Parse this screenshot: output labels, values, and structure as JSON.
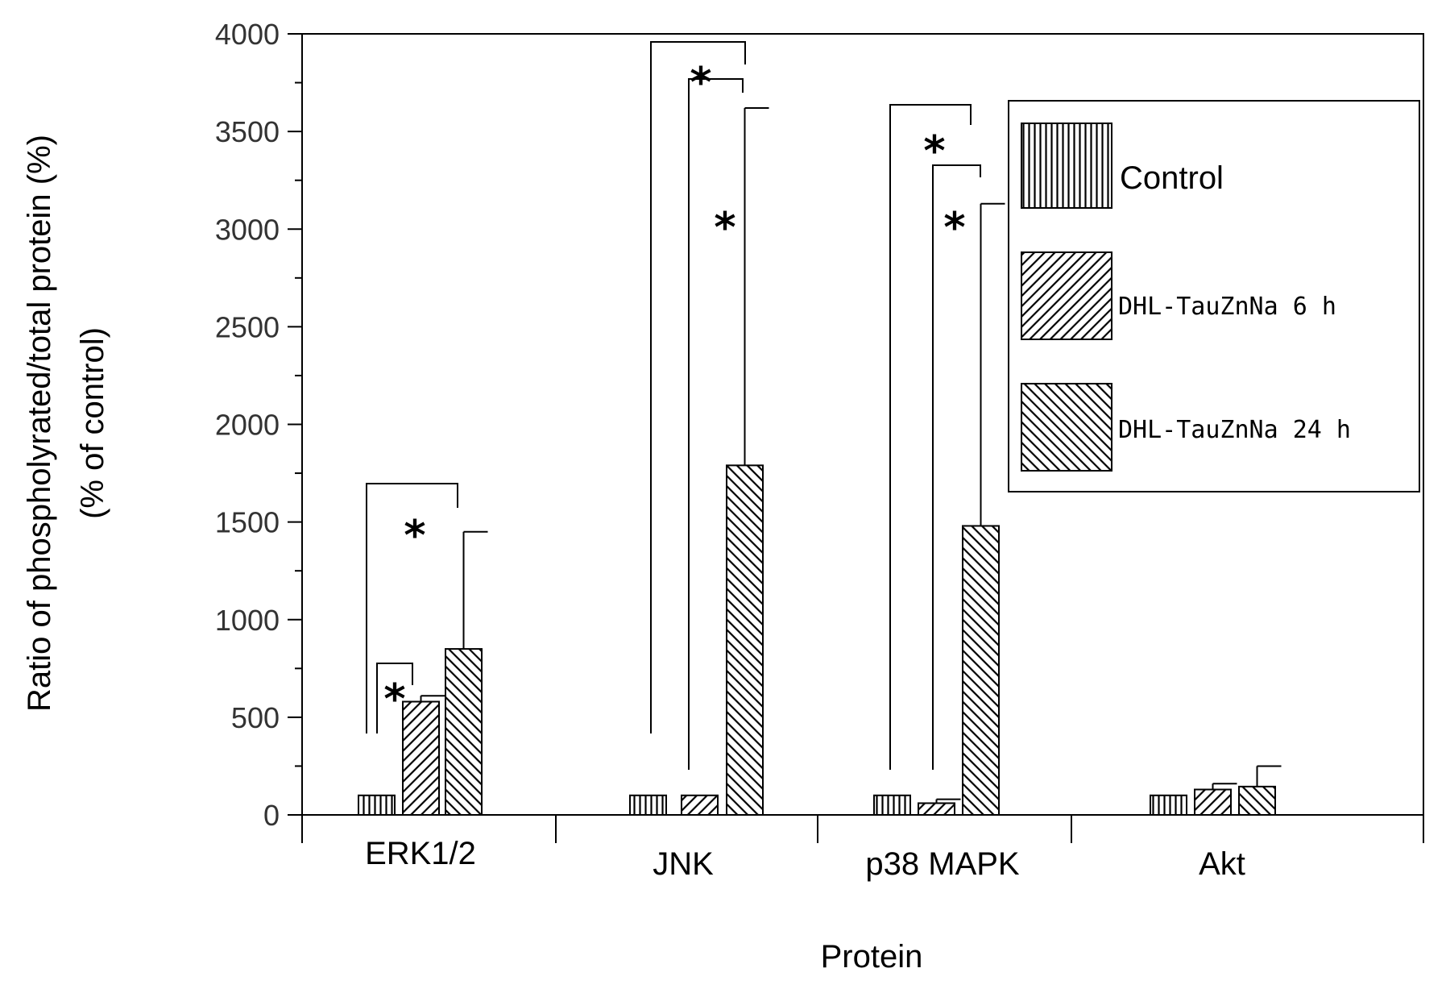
{
  "chart_data": {
    "type": "bar",
    "xlabel": "Protein",
    "ylabel_line1": "Ratio of phospholyrated/total protein (%)",
    "ylabel_line2": "(% of control)",
    "ylim": [
      0,
      4000
    ],
    "yticks": [
      "0",
      "500",
      "1000",
      "1500",
      "2000",
      "2500",
      "3000",
      "3500",
      "4000"
    ],
    "categories": [
      "ERK1/2",
      "JNK",
      "p38 MAPK",
      "Akt"
    ],
    "series": [
      {
        "name": "Control",
        "pattern": "vertical",
        "values": [
          100,
          100,
          100,
          100
        ],
        "errors": [
          0,
          0,
          0,
          0
        ]
      },
      {
        "name": "DHL-TauZnNa 6 h",
        "pattern": "forward-diagonal",
        "values": [
          580,
          100,
          60,
          130
        ],
        "errors": [
          30,
          0,
          20,
          30
        ]
      },
      {
        "name": "DHL-TauZnNa 24 h",
        "pattern": "back-diagonal",
        "values": [
          850,
          1790,
          1480,
          145
        ],
        "errors": [
          600,
          1830,
          1650,
          105
        ]
      }
    ],
    "significance_marker": "*",
    "legend_position": "top-right",
    "grid": false
  }
}
